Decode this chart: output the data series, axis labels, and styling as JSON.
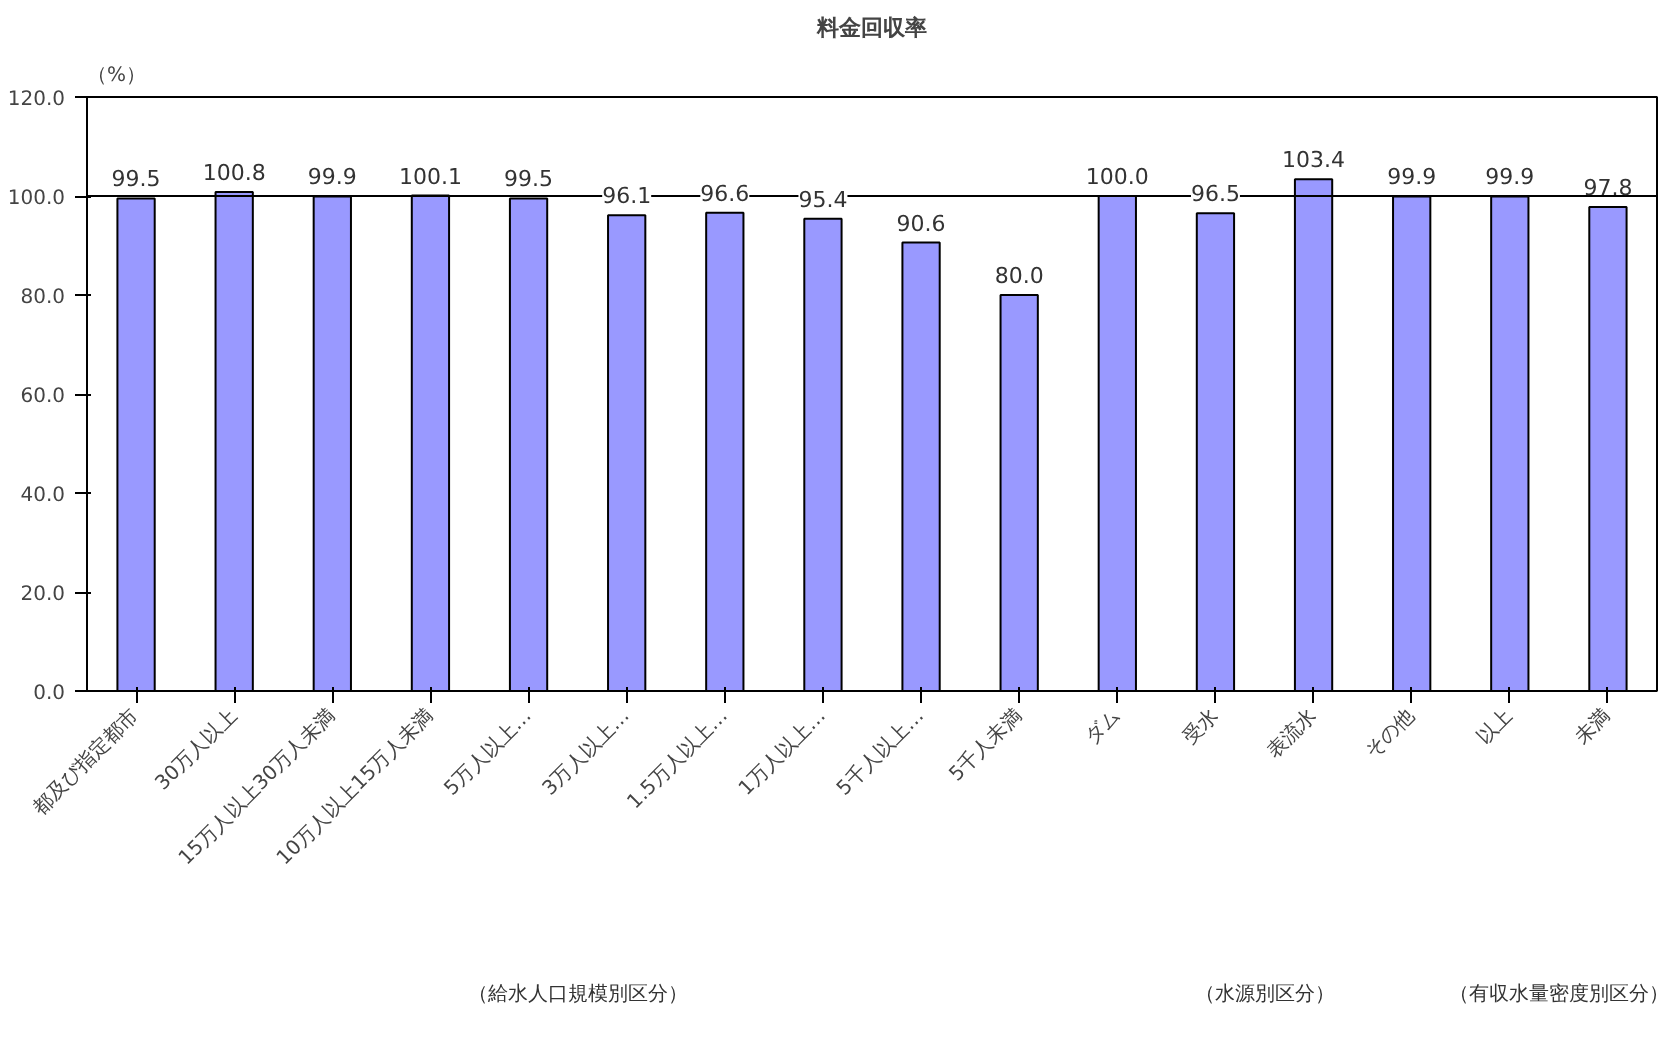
{
  "chart_data": {
    "type": "bar",
    "title": "料金回収率",
    "ylabel": "（%）",
    "categories": [
      "都及び指定都市",
      "30万人以上",
      "15万人以上30万人未満",
      "10万人以上15万人未満",
      "5万人以上…",
      "3万人以上…",
      "1.5万人以上…",
      "1万人以上…",
      "5千人以上…",
      "5千人未満",
      "ダム",
      "受水",
      "表流水",
      "その他",
      "以上",
      "未満"
    ],
    "values": [
      99.5,
      100.8,
      99.9,
      100.1,
      99.5,
      96.1,
      96.6,
      95.4,
      90.6,
      80.0,
      100.0,
      96.5,
      103.4,
      99.9,
      99.9,
      97.8
    ],
    "color": "#9999ff",
    "value_labels": [
      "99.5",
      "100.8",
      "99.9",
      "100.1",
      "99.5",
      "96.1",
      "96.6",
      "95.4",
      "90.6",
      "80.0",
      "100.0",
      "96.5",
      "103.4",
      "99.9",
      "99.9",
      "97.8"
    ],
    "ylim": [
      0,
      120
    ],
    "yticks": [
      {
        "value": 0,
        "label": "0.0"
      },
      {
        "value": 20,
        "label": "20.0"
      },
      {
        "value": 40,
        "label": "40.0"
      },
      {
        "value": 60,
        "label": "60.0"
      },
      {
        "value": 80,
        "label": "80.0"
      },
      {
        "value": 100,
        "label": "100.0"
      },
      {
        "value": 120,
        "label": "120.0"
      }
    ],
    "ref_lines": [
      {
        "axis": "y",
        "value": 100,
        "color": "#000000"
      }
    ],
    "grid": false,
    "annotations": [
      "（給水人口規模別区分）",
      "（水源別区分）",
      "（有収水量密度別区分）"
    ]
  }
}
